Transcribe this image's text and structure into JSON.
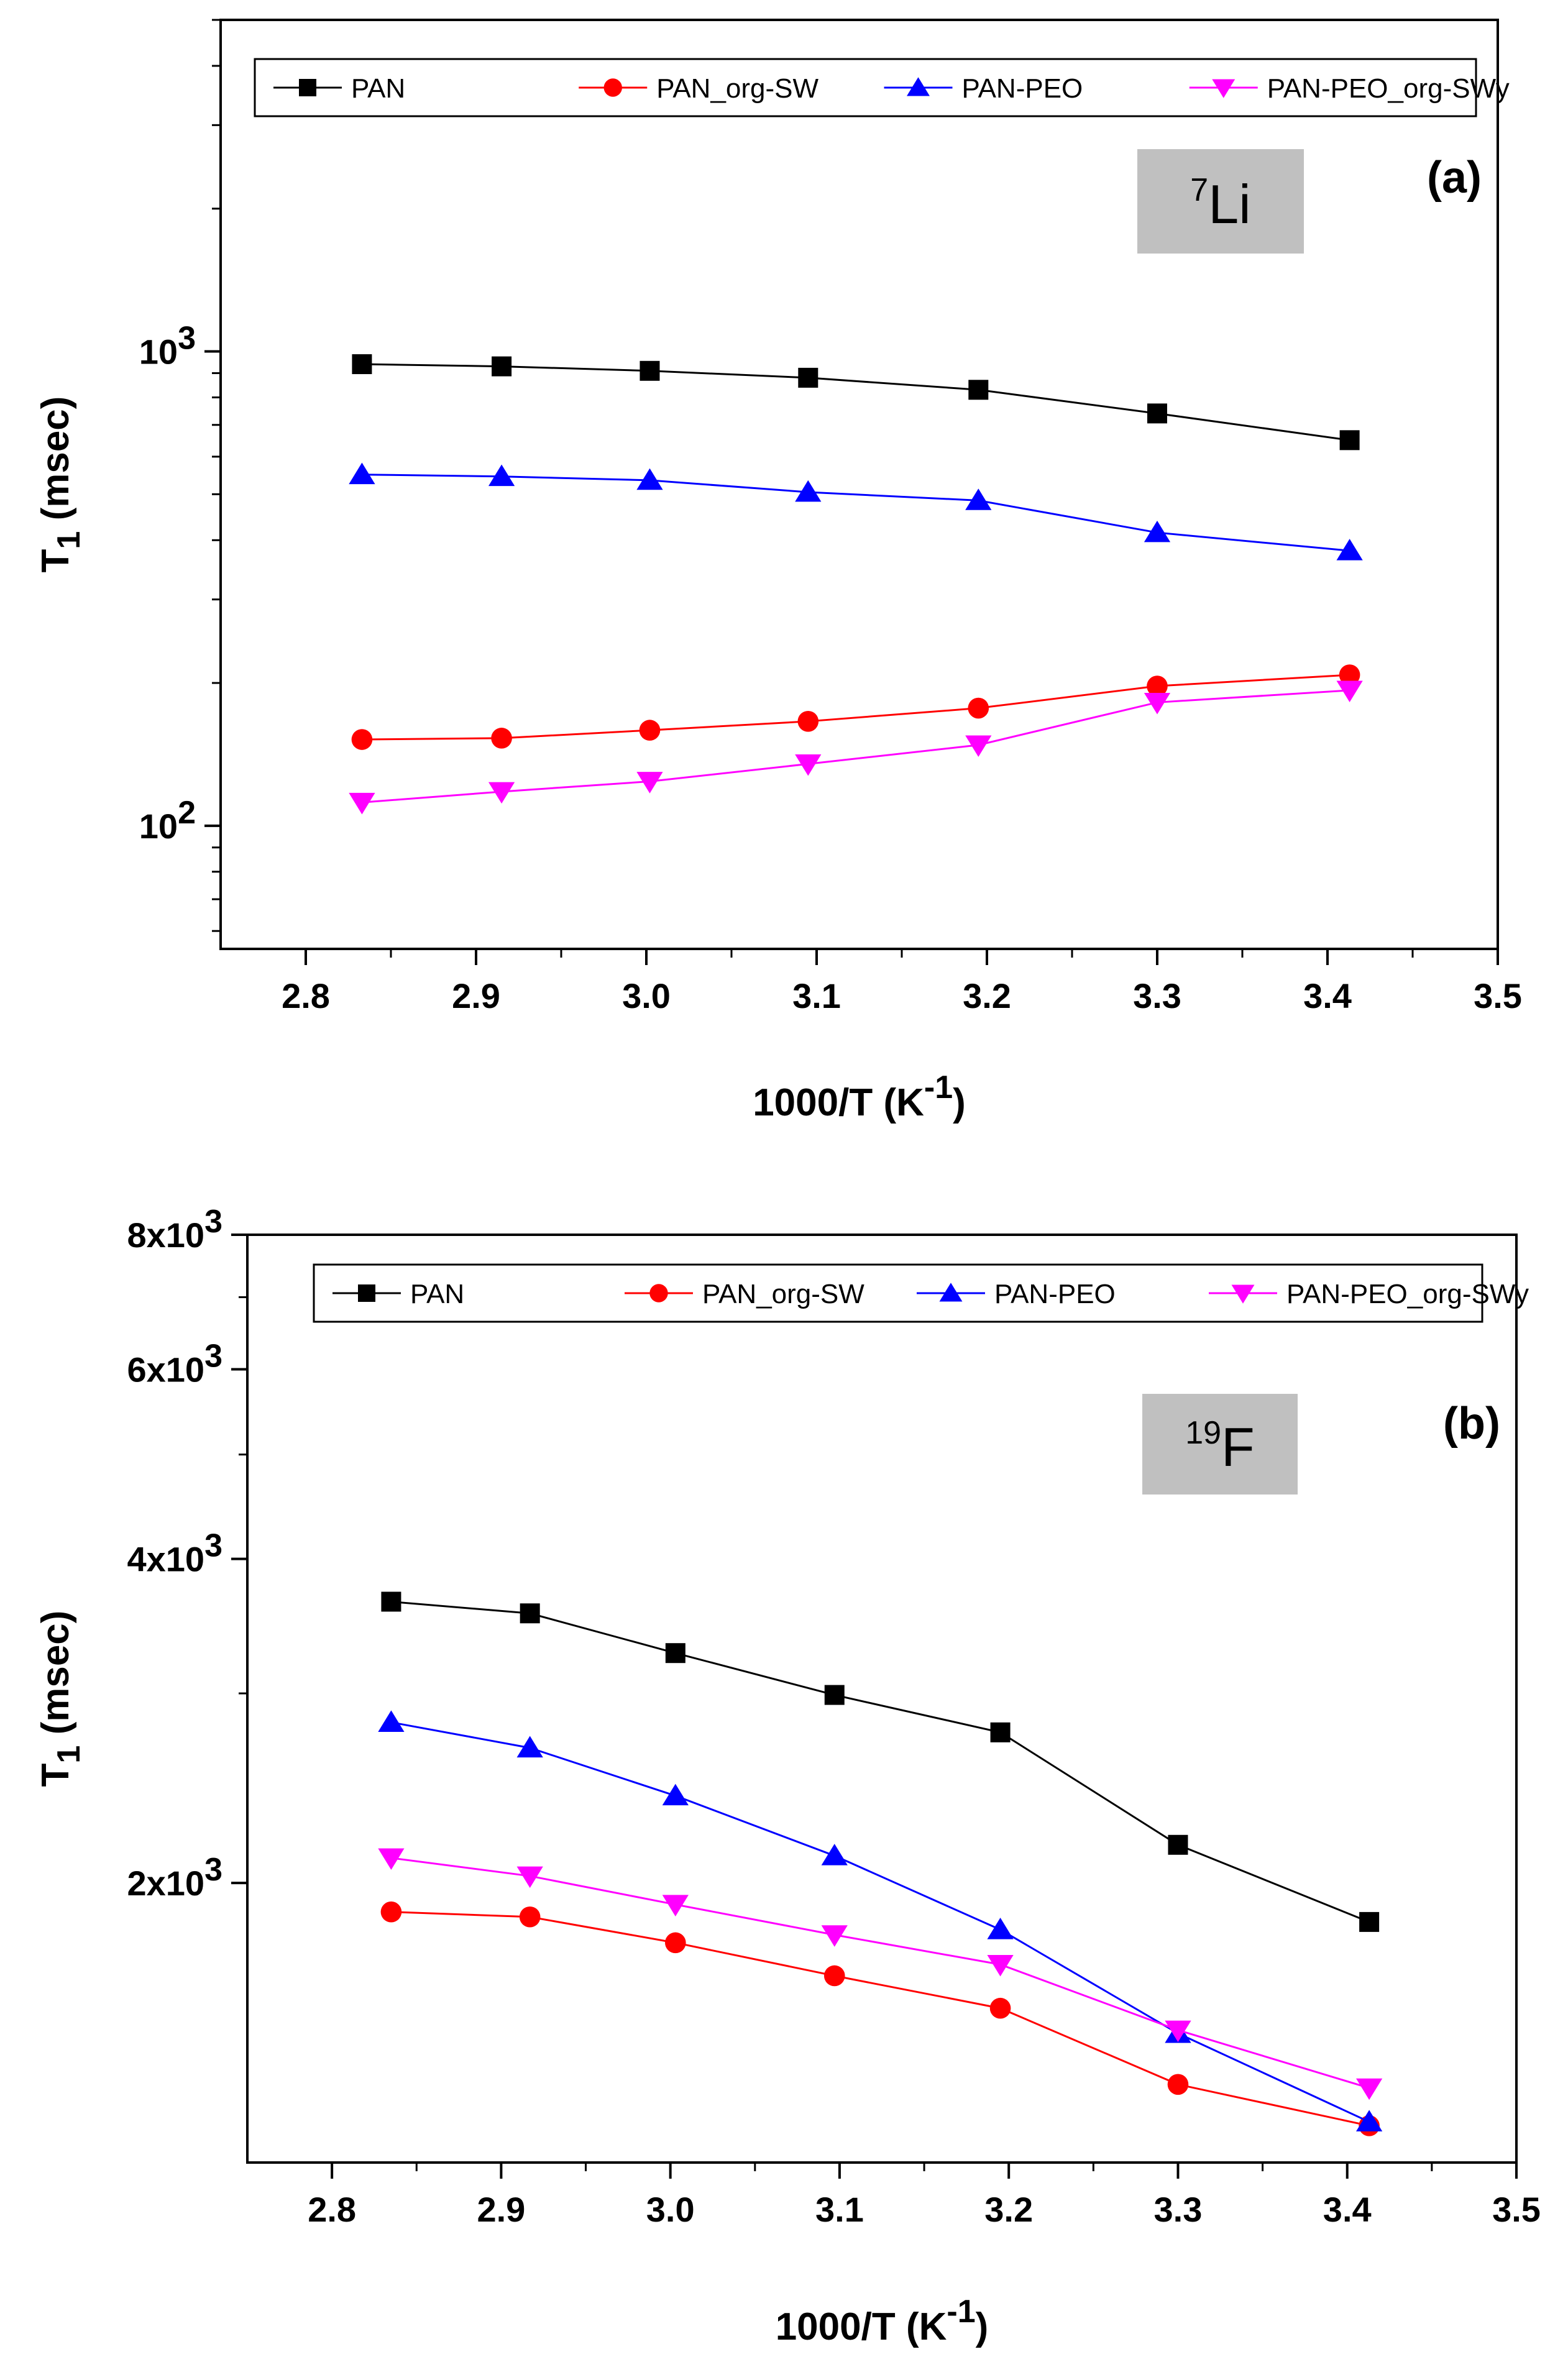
{
  "chart_data": [
    {
      "id": "a",
      "type": "line",
      "panel_label": "(a)",
      "nucleus": {
        "mass": "7",
        "symbol": "Li"
      },
      "xlabel": {
        "main": "1000/T (K",
        "sup": "-1",
        "end": ")"
      },
      "ylabel": {
        "main": "T",
        "sub": "1",
        "end": " (msec)"
      },
      "yscale": "log",
      "xlim": [
        2.75,
        3.5
      ],
      "ylim": [
        55,
        5000
      ],
      "x_ticks": [
        2.8,
        2.9,
        3.0,
        3.1,
        3.2,
        3.3,
        3.4,
        3.5
      ],
      "x_tick_labels": [
        "2.8",
        "2.9",
        "3.0",
        "3.1",
        "3.2",
        "3.3",
        "3.4",
        "3.5"
      ],
      "y_ticks": [
        {
          "value": 100,
          "base": "10",
          "exp": "2"
        },
        {
          "value": 1000,
          "base": "10",
          "exp": "3"
        }
      ],
      "legend_position": "top",
      "x": [
        2.833,
        2.915,
        3.002,
        3.095,
        3.195,
        3.3,
        3.413
      ],
      "series": [
        {
          "name": "PAN",
          "color": "#000000",
          "marker": "square",
          "values": [
            940,
            930,
            910,
            880,
            830,
            740,
            650
          ]
        },
        {
          "name": "PAN_org-SW",
          "color": "#ff0000",
          "marker": "circle",
          "values": [
            152,
            153,
            159,
            166,
            177,
            197,
            208
          ]
        },
        {
          "name": "PAN-PEO",
          "color": "#0000ff",
          "marker": "triangle-up",
          "values": [
            550,
            545,
            535,
            505,
            485,
            415,
            380
          ]
        },
        {
          "name": "PAN-PEO_org-SWy",
          "color": "#ff00ff",
          "marker": "triangle-down",
          "values": [
            112,
            118,
            124,
            135,
            148,
            182,
            193
          ]
        }
      ]
    },
    {
      "id": "b",
      "type": "line",
      "panel_label": "(b)",
      "nucleus": {
        "mass": "19",
        "symbol": "F"
      },
      "xlabel": {
        "main": "1000/T (K",
        "sup": "-1",
        "end": ")"
      },
      "ylabel": {
        "main": "T",
        "sub": "1",
        "end": " (msec)"
      },
      "yscale": "log",
      "xlim": [
        2.75,
        3.5
      ],
      "ylim": [
        1100,
        8000
      ],
      "x_ticks": [
        2.8,
        2.9,
        3.0,
        3.1,
        3.2,
        3.3,
        3.4,
        3.5
      ],
      "x_tick_labels": [
        "2.8",
        "2.9",
        "3.0",
        "3.1",
        "3.2",
        "3.3",
        "3.4",
        "3.5"
      ],
      "y_ticks": [
        {
          "value": 2000,
          "base": "2x10",
          "exp": "3"
        },
        {
          "value": 4000,
          "base": "4x10",
          "exp": "3"
        },
        {
          "value": 6000,
          "base": "6x10",
          "exp": "3"
        },
        {
          "value": 8000,
          "base": "8x10",
          "exp": "3"
        }
      ],
      "legend_position": "top",
      "x": [
        2.835,
        2.917,
        3.003,
        3.097,
        3.195,
        3.3,
        3.413
      ],
      "series": [
        {
          "name": "PAN",
          "color": "#000000",
          "marker": "square",
          "values": [
            3650,
            3560,
            3270,
            2990,
            2760,
            2170,
            1840
          ]
        },
        {
          "name": "PAN_org-SW",
          "color": "#ff0000",
          "marker": "circle",
          "values": [
            1880,
            1860,
            1760,
            1640,
            1530,
            1300,
            1190
          ]
        },
        {
          "name": "PAN-PEO",
          "color": "#0000ff",
          "marker": "triangle-up",
          "values": [
            2820,
            2670,
            2410,
            2120,
            1810,
            1450,
            1200
          ]
        },
        {
          "name": "PAN-PEO_org-SWy",
          "color": "#ff00ff",
          "marker": "triangle-down",
          "values": [
            2110,
            2030,
            1910,
            1790,
            1680,
            1460,
            1290
          ]
        }
      ]
    }
  ]
}
